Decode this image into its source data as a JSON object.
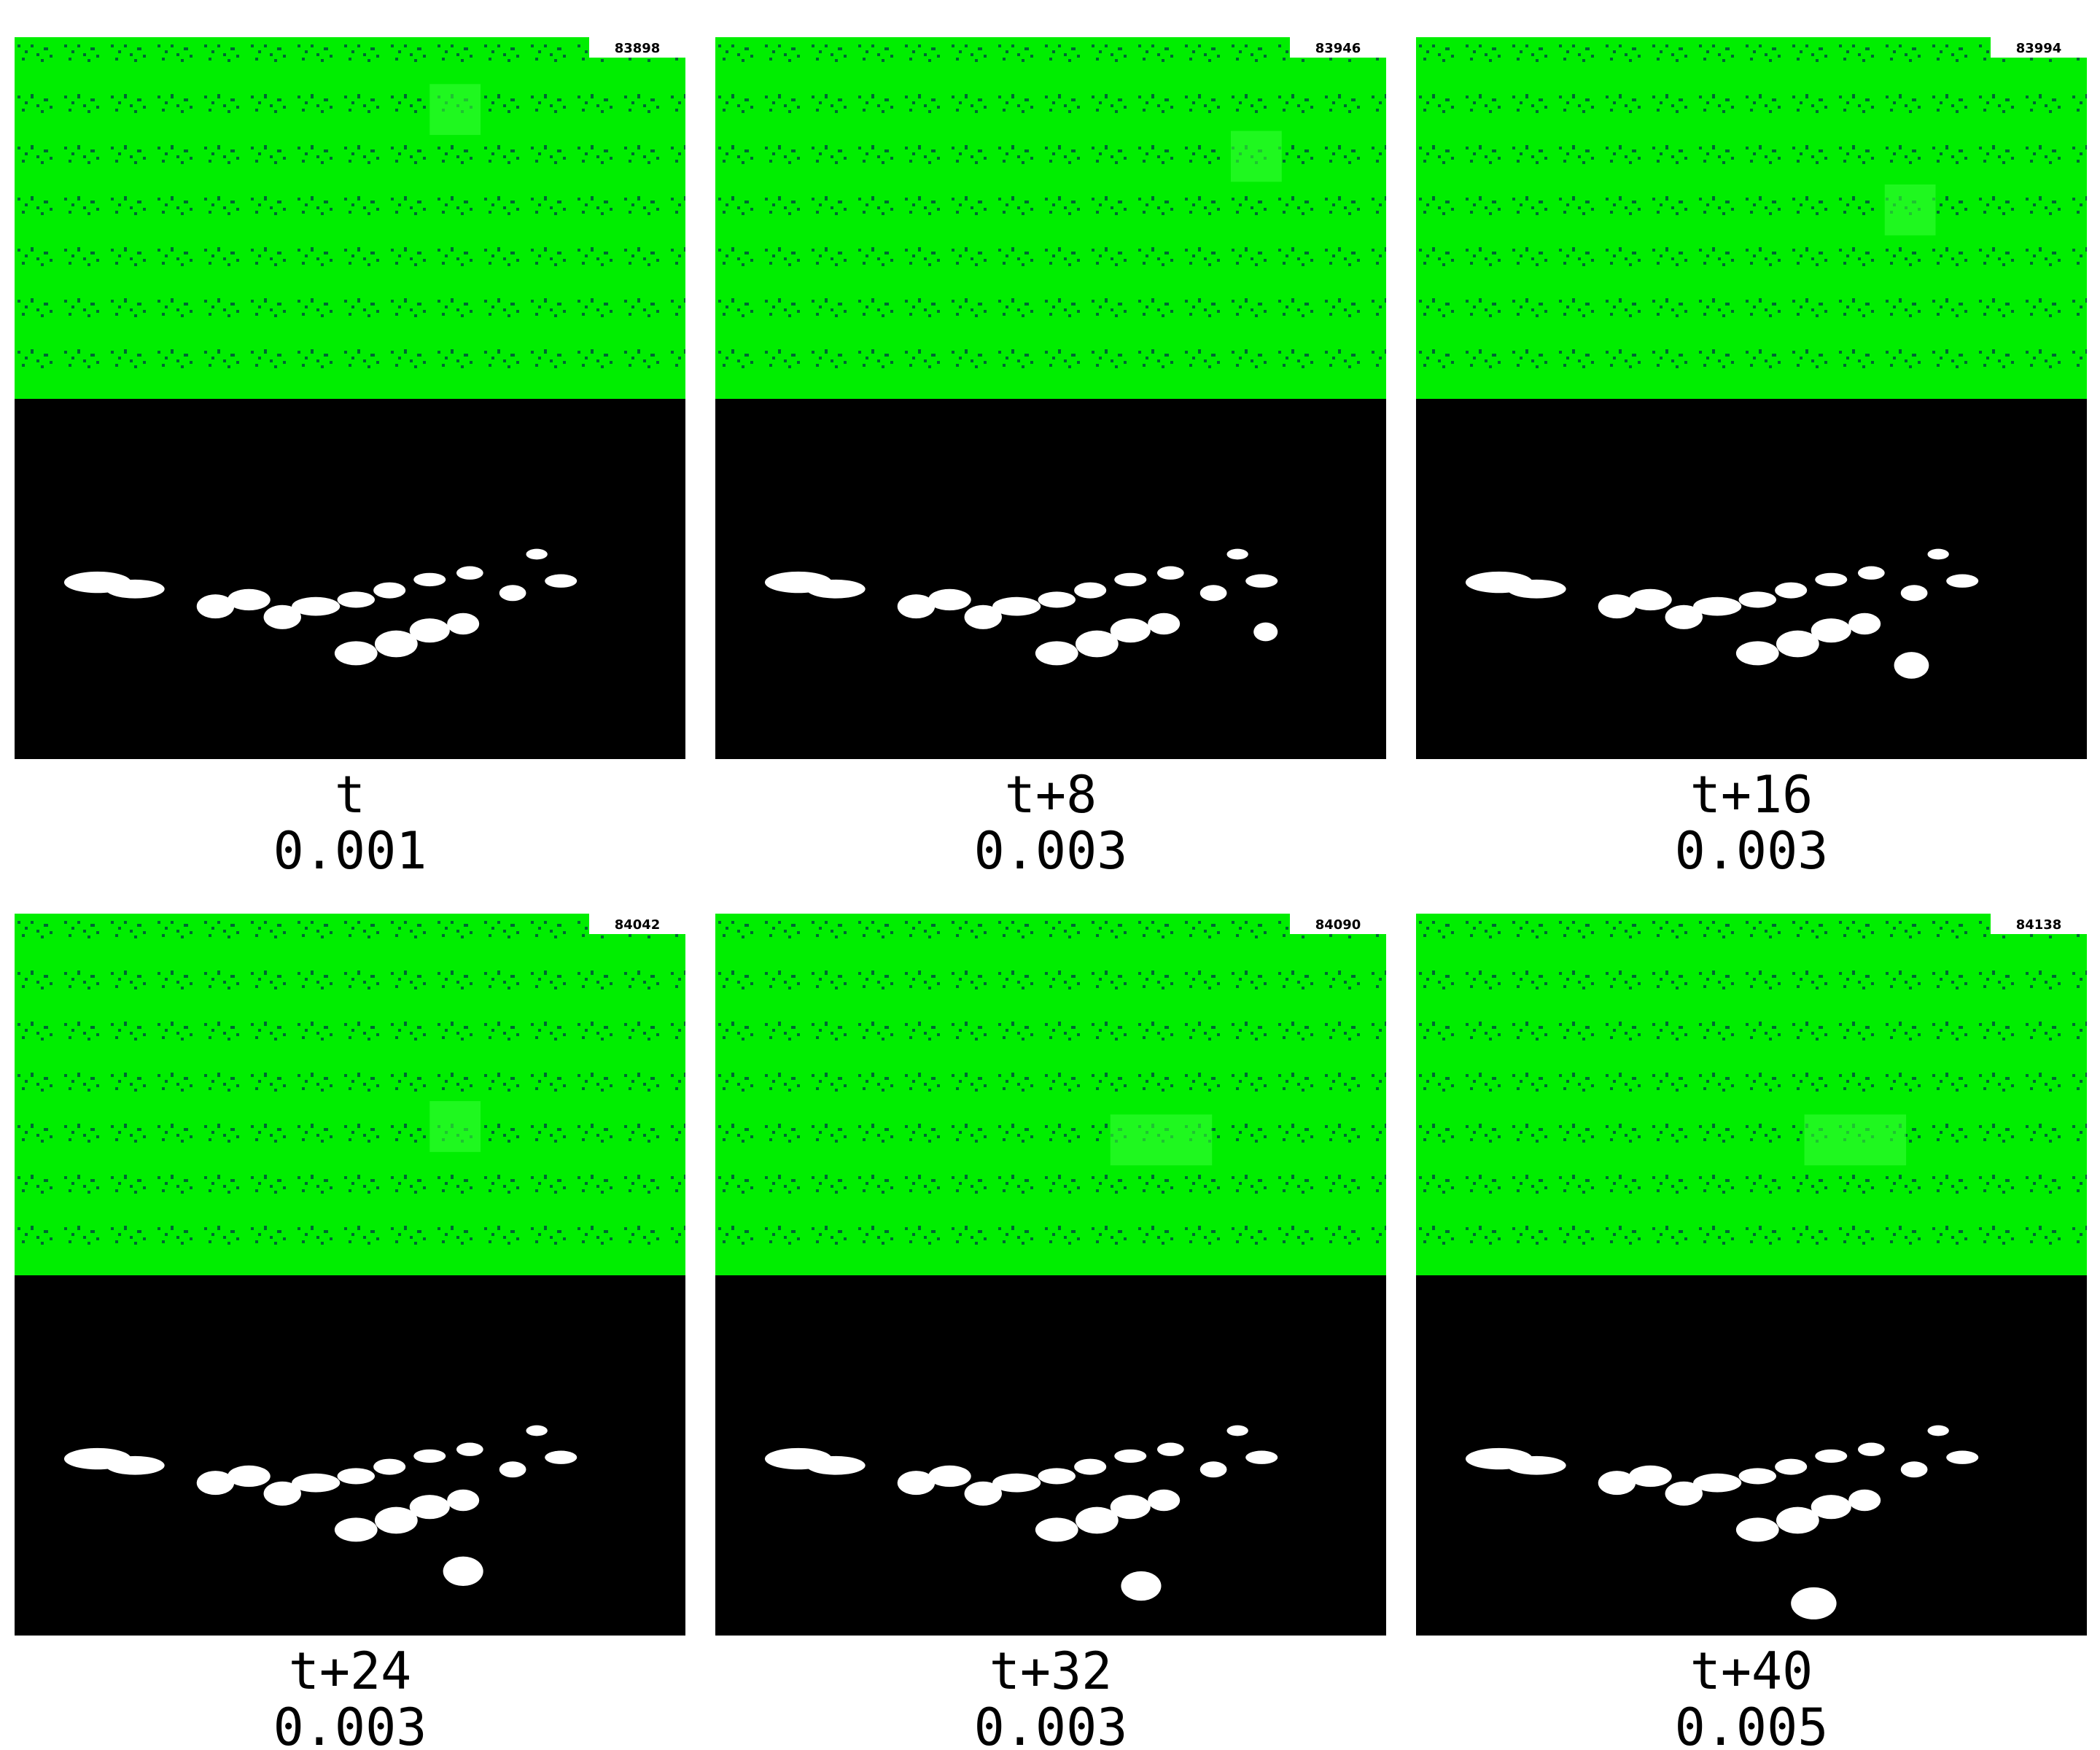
{
  "panels": [
    {
      "frame_id": "83898",
      "time_label": "t",
      "score": "0.001"
    },
    {
      "frame_id": "83946",
      "time_label": "t+8",
      "score": "0.003"
    },
    {
      "frame_id": "83994",
      "time_label": "t+16",
      "score": "0.003"
    },
    {
      "frame_id": "84042",
      "time_label": "t+24",
      "score": "0.003"
    },
    {
      "frame_id": "84090",
      "time_label": "t+32",
      "score": "0.003"
    },
    {
      "frame_id": "84138",
      "time_label": "t+40",
      "score": "0.005"
    }
  ]
}
